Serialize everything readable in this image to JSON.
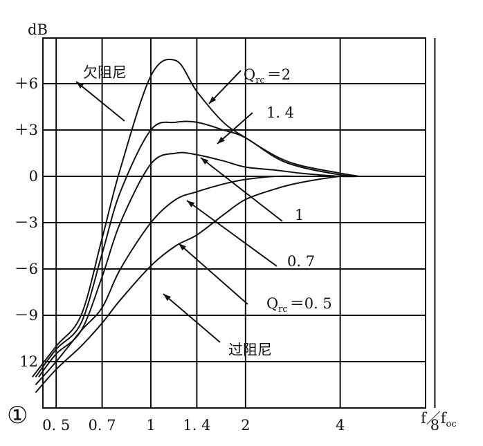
{
  "chart_data": {
    "type": "line",
    "y_unit_label": "dB",
    "x_axis_label": "f／f",
    "x_axis_label_sub": "oc",
    "x_scale": "log",
    "x_ticks": [
      {
        "value": 0.5,
        "label": "0. 5"
      },
      {
        "value": 0.7,
        "label": "0. 7"
      },
      {
        "value": 1,
        "label": "1"
      },
      {
        "value": 1.4,
        "label": "1. 4"
      },
      {
        "value": 2,
        "label": "2"
      },
      {
        "value": 4,
        "label": "4"
      },
      {
        "value": 8,
        "label": "8"
      }
    ],
    "y_ticks": [
      {
        "value": 6,
        "label": "＋6"
      },
      {
        "value": 3,
        "label": "＋3"
      },
      {
        "value": 0,
        "label": "0"
      },
      {
        "value": -3,
        "label": "－3"
      },
      {
        "value": -6,
        "label": "－6"
      },
      {
        "value": -9,
        "label": "－9"
      },
      {
        "value": -12,
        "label": "12"
      }
    ],
    "grid": true,
    "figure_number": "①",
    "region_labels": {
      "under_damped": "欠阻尼",
      "over_damped": "过阻尼"
    },
    "series": [
      {
        "name": "2",
        "x": [
          0.42,
          0.5,
          0.6,
          0.7,
          0.8,
          1.0,
          1.2,
          1.4,
          1.7,
          2.0,
          2.5,
          3.0,
          4.0,
          4.6
        ],
        "y": [
          -13.0,
          -11.0,
          -9.0,
          -4.0,
          0.5,
          6.5,
          7.5,
          5.5,
          3.5,
          2.5,
          1.3,
          0.7,
          0.2,
          0.0
        ]
      },
      {
        "name": "1.4",
        "x": [
          0.43,
          0.5,
          0.6,
          0.7,
          0.8,
          1.0,
          1.2,
          1.4,
          1.7,
          2.0,
          2.5,
          3.0,
          4.0,
          4.6
        ],
        "y": [
          -13.0,
          -11.2,
          -9.5,
          -5.0,
          -1.0,
          3.0,
          3.5,
          3.5,
          3.0,
          2.5,
          1.2,
          0.6,
          0.1,
          0.0
        ]
      },
      {
        "name": "1",
        "x": [
          0.44,
          0.5,
          0.6,
          0.7,
          0.8,
          1.0,
          1.2,
          1.4,
          1.7,
          2.0,
          2.5,
          3.0,
          4.0,
          4.6
        ],
        "y": [
          -13.0,
          -11.5,
          -10.0,
          -6.5,
          -3.0,
          0.8,
          1.5,
          1.4,
          1.0,
          0.6,
          0.4,
          0.2,
          0.0,
          0.0
        ]
      },
      {
        "name": "0.7",
        "x": [
          0.43,
          0.5,
          0.6,
          0.7,
          0.8,
          1.0,
          1.2,
          1.4,
          1.7,
          2.0,
          2.5,
          3.0,
          4.0,
          4.6
        ],
        "y": [
          -13.5,
          -12.0,
          -10.0,
          -8.5,
          -6.0,
          -3.0,
          -1.5,
          -1.0,
          -0.5,
          -0.2,
          0.0,
          0.0,
          0.0,
          0.0
        ]
      },
      {
        "name": "0.5",
        "x": [
          0.43,
          0.5,
          0.6,
          0.7,
          0.8,
          1.0,
          1.2,
          1.4,
          1.7,
          2.0,
          2.5,
          3.0,
          4.0,
          4.6
        ],
        "y": [
          -14.0,
          -12.5,
          -11.0,
          -9.5,
          -8.0,
          -5.8,
          -4.5,
          -3.8,
          -2.5,
          -1.5,
          -0.8,
          -0.4,
          0.0,
          0.0
        ]
      }
    ],
    "series_labels": [
      {
        "series": "2",
        "prefix": "Q",
        "sub": "rc",
        "text": "＝2"
      },
      {
        "series": "1.4",
        "prefix": "",
        "sub": "",
        "text": "1. 4"
      },
      {
        "series": "1",
        "prefix": "",
        "sub": "",
        "text": "1"
      },
      {
        "series": "0.7",
        "prefix": "",
        "sub": "",
        "text": "0. 7"
      },
      {
        "series": "0.5",
        "prefix": "Q",
        "sub": "rc",
        "text": "＝0. 5"
      }
    ]
  }
}
